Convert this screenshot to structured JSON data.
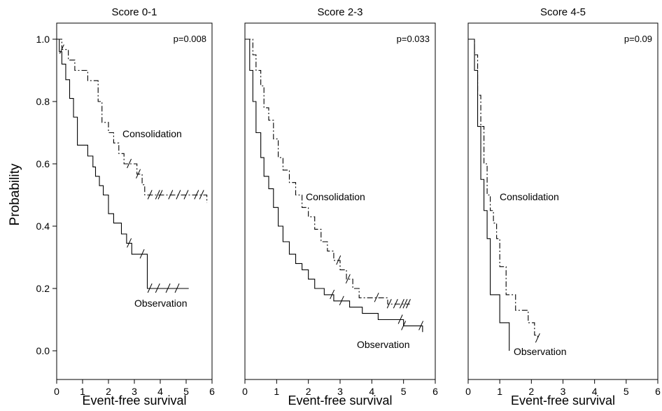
{
  "figure": {
    "ylabel": "Probability"
  },
  "chart_data": [
    {
      "type": "line",
      "title": "Score 0-1",
      "xlabel": "Event-free survival",
      "ylabel": "Probability",
      "xlim": [
        0,
        6
      ],
      "ylim": [
        0.0,
        1.0
      ],
      "xticks": [
        "0",
        "1",
        "2",
        "3",
        "4",
        "5",
        "6"
      ],
      "yticks": [
        "0.0",
        "0.2",
        "0.4",
        "0.6",
        "0.8",
        "1.0"
      ],
      "grid": false,
      "annotation": "p=0.008",
      "series": [
        {
          "name": "Consolidation",
          "line_style": "dash-dot",
          "x": [
            0,
            0.2,
            0.45,
            0.7,
            1.2,
            1.6,
            1.75,
            2.0,
            2.2,
            2.4,
            2.6,
            2.9,
            3.1,
            3.3,
            3.4,
            5.8
          ],
          "y": [
            1.0,
            0.967,
            0.933,
            0.9,
            0.867,
            0.8,
            0.733,
            0.7,
            0.667,
            0.633,
            0.6,
            0.6,
            0.567,
            0.533,
            0.5,
            0.475
          ],
          "censor_x": [
            0.2,
            2.8,
            3.15,
            3.6,
            3.9,
            4.0,
            4.4,
            4.7,
            5.0,
            5.4,
            5.6
          ],
          "label": "Consolidation"
        },
        {
          "name": "Observation",
          "line_style": "solid",
          "x": [
            0,
            0.1,
            0.2,
            0.35,
            0.5,
            0.65,
            0.8,
            1.0,
            1.2,
            1.4,
            1.5,
            1.65,
            1.8,
            2.0,
            2.2,
            2.5,
            2.7,
            2.9,
            3.5,
            5.1
          ],
          "y": [
            1.0,
            0.96,
            0.92,
            0.87,
            0.81,
            0.75,
            0.66,
            0.66,
            0.625,
            0.59,
            0.56,
            0.53,
            0.5,
            0.44,
            0.41,
            0.375,
            0.345,
            0.31,
            0.2,
            0.2
          ],
          "censor_x": [
            2.8,
            3.3,
            3.6,
            3.9,
            4.3,
            4.65
          ],
          "label": "Observation"
        }
      ]
    },
    {
      "type": "line",
      "title": "Score 2-3",
      "xlabel": "Event-free survival",
      "xlim": [
        0,
        6
      ],
      "ylim": [
        0.0,
        1.0
      ],
      "xticks": [
        "0",
        "1",
        "2",
        "3",
        "4",
        "5",
        "6"
      ],
      "grid": false,
      "annotation": "p=0.033",
      "series": [
        {
          "name": "Consolidation",
          "line_style": "dash-dot",
          "x": [
            0,
            0.25,
            0.35,
            0.5,
            0.6,
            0.75,
            0.9,
            1.05,
            1.2,
            1.4,
            1.6,
            1.8,
            2.0,
            2.2,
            2.4,
            2.6,
            2.8,
            3.0,
            3.2,
            3.4,
            3.6,
            4.0,
            4.5,
            5.2
          ],
          "y": [
            1.0,
            0.95,
            0.9,
            0.85,
            0.78,
            0.74,
            0.68,
            0.62,
            0.58,
            0.54,
            0.5,
            0.46,
            0.43,
            0.39,
            0.35,
            0.32,
            0.29,
            0.26,
            0.23,
            0.2,
            0.17,
            0.17,
            0.15,
            0.15
          ],
          "censor_x": [
            2.95,
            3.25,
            4.15,
            4.55,
            4.75,
            4.95,
            5.05,
            5.15
          ],
          "label": "Consolidation"
        },
        {
          "name": "Observation",
          "line_style": "solid",
          "x": [
            0,
            0.15,
            0.25,
            0.35,
            0.5,
            0.6,
            0.75,
            0.9,
            1.05,
            1.2,
            1.4,
            1.6,
            1.8,
            2.0,
            2.2,
            2.5,
            2.8,
            3.3,
            3.7,
            4.2,
            5.0,
            5.6
          ],
          "y": [
            1.0,
            0.9,
            0.8,
            0.7,
            0.62,
            0.56,
            0.52,
            0.46,
            0.4,
            0.35,
            0.31,
            0.28,
            0.26,
            0.23,
            0.2,
            0.18,
            0.16,
            0.14,
            0.12,
            0.1,
            0.08,
            0.06
          ],
          "censor_x": [
            2.75,
            3.05,
            4.9,
            5.0,
            5.55
          ],
          "label": "Observation"
        }
      ]
    },
    {
      "type": "line",
      "title": "Score 4-5",
      "xlabel": "Event-free survival",
      "xlim": [
        0,
        6
      ],
      "ylim": [
        0.0,
        1.0
      ],
      "xticks": [
        "0",
        "1",
        "2",
        "3",
        "4",
        "5",
        "6"
      ],
      "grid": false,
      "annotation": "p=0.09",
      "series": [
        {
          "name": "Consolidation",
          "line_style": "dash-dot",
          "x": [
            0,
            0.2,
            0.3,
            0.4,
            0.5,
            0.6,
            0.7,
            0.8,
            0.9,
            1.0,
            1.2,
            1.5,
            1.9,
            2.1,
            2.2
          ],
          "y": [
            1.0,
            0.95,
            0.82,
            0.72,
            0.6,
            0.5,
            0.45,
            0.41,
            0.36,
            0.27,
            0.18,
            0.13,
            0.09,
            0.05,
            0.04
          ],
          "censor_x": [
            2.2
          ],
          "label": "Consolidation"
        },
        {
          "name": "Observation",
          "line_style": "solid",
          "x": [
            0,
            0.2,
            0.3,
            0.4,
            0.5,
            0.6,
            0.7,
            1.0,
            1.3,
            1.3
          ],
          "y": [
            1.0,
            0.9,
            0.72,
            0.55,
            0.45,
            0.36,
            0.18,
            0.09,
            0.09,
            0.0
          ],
          "censor_x": [],
          "label": "Observation"
        }
      ]
    }
  ]
}
